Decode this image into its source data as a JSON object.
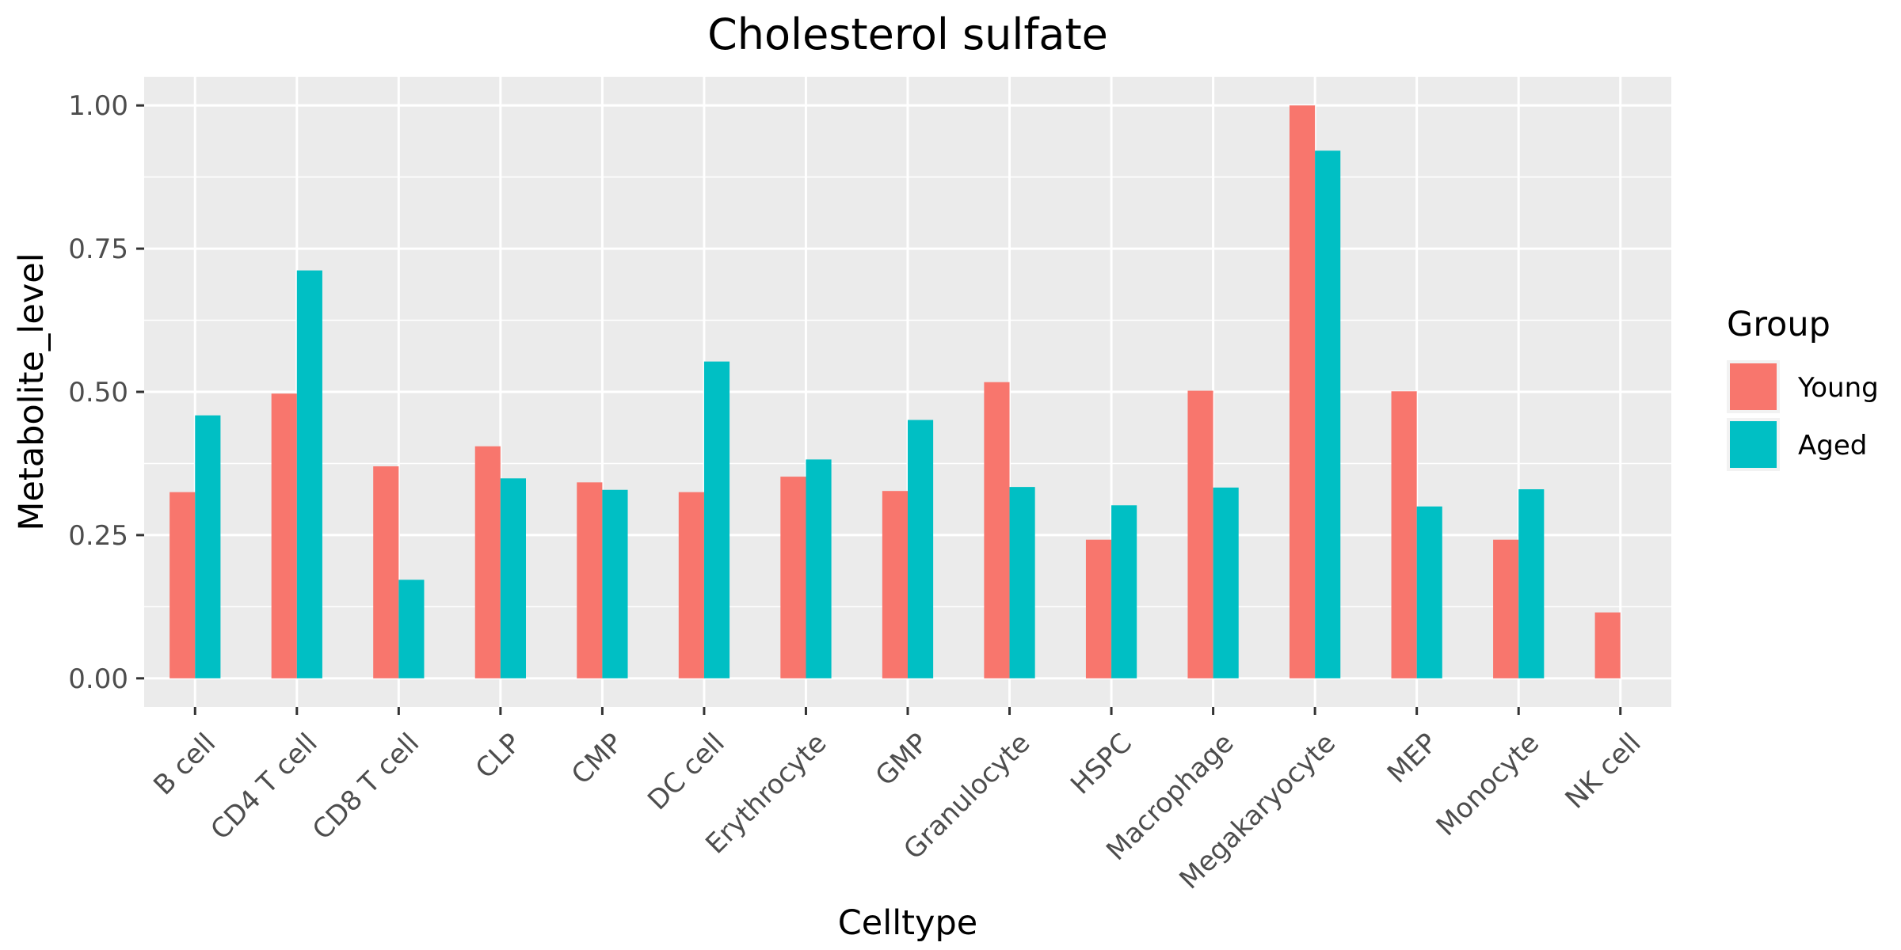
{
  "chart_data": {
    "type": "bar",
    "title": "Cholesterol sulfate",
    "xlabel": "Celltype",
    "ylabel": "Metabolite_level",
    "ylim": [
      -0.05,
      1.05
    ],
    "yticks": [
      0.0,
      0.25,
      0.5,
      0.75,
      1.0
    ],
    "ytick_labels": [
      "0.00",
      "0.25",
      "0.50",
      "0.75",
      "1.00"
    ],
    "grid": true,
    "legend": {
      "title": "Group",
      "position": "right"
    },
    "categories": [
      "B cell",
      "CD4 T cell",
      "CD8 T cell",
      "CLP",
      "CMP",
      "DC cell",
      "Erythrocyte",
      "GMP",
      "Granulocyte",
      "HSPC",
      "Macrophage",
      "Megakaryocyte",
      "MEP",
      "Monocyte",
      "NK cell"
    ],
    "series": [
      {
        "name": "Young",
        "color": "#F8766D",
        "values": [
          0.325,
          0.497,
          0.37,
          0.405,
          0.342,
          0.325,
          0.352,
          0.327,
          0.517,
          0.242,
          0.502,
          1.0,
          0.501,
          0.242,
          0.115
        ]
      },
      {
        "name": "Aged",
        "color": "#00BFC4",
        "values": [
          0.459,
          0.712,
          0.172,
          0.349,
          0.329,
          0.553,
          0.382,
          0.451,
          0.334,
          0.302,
          0.333,
          0.921,
          0.3,
          0.33,
          null
        ]
      }
    ]
  }
}
